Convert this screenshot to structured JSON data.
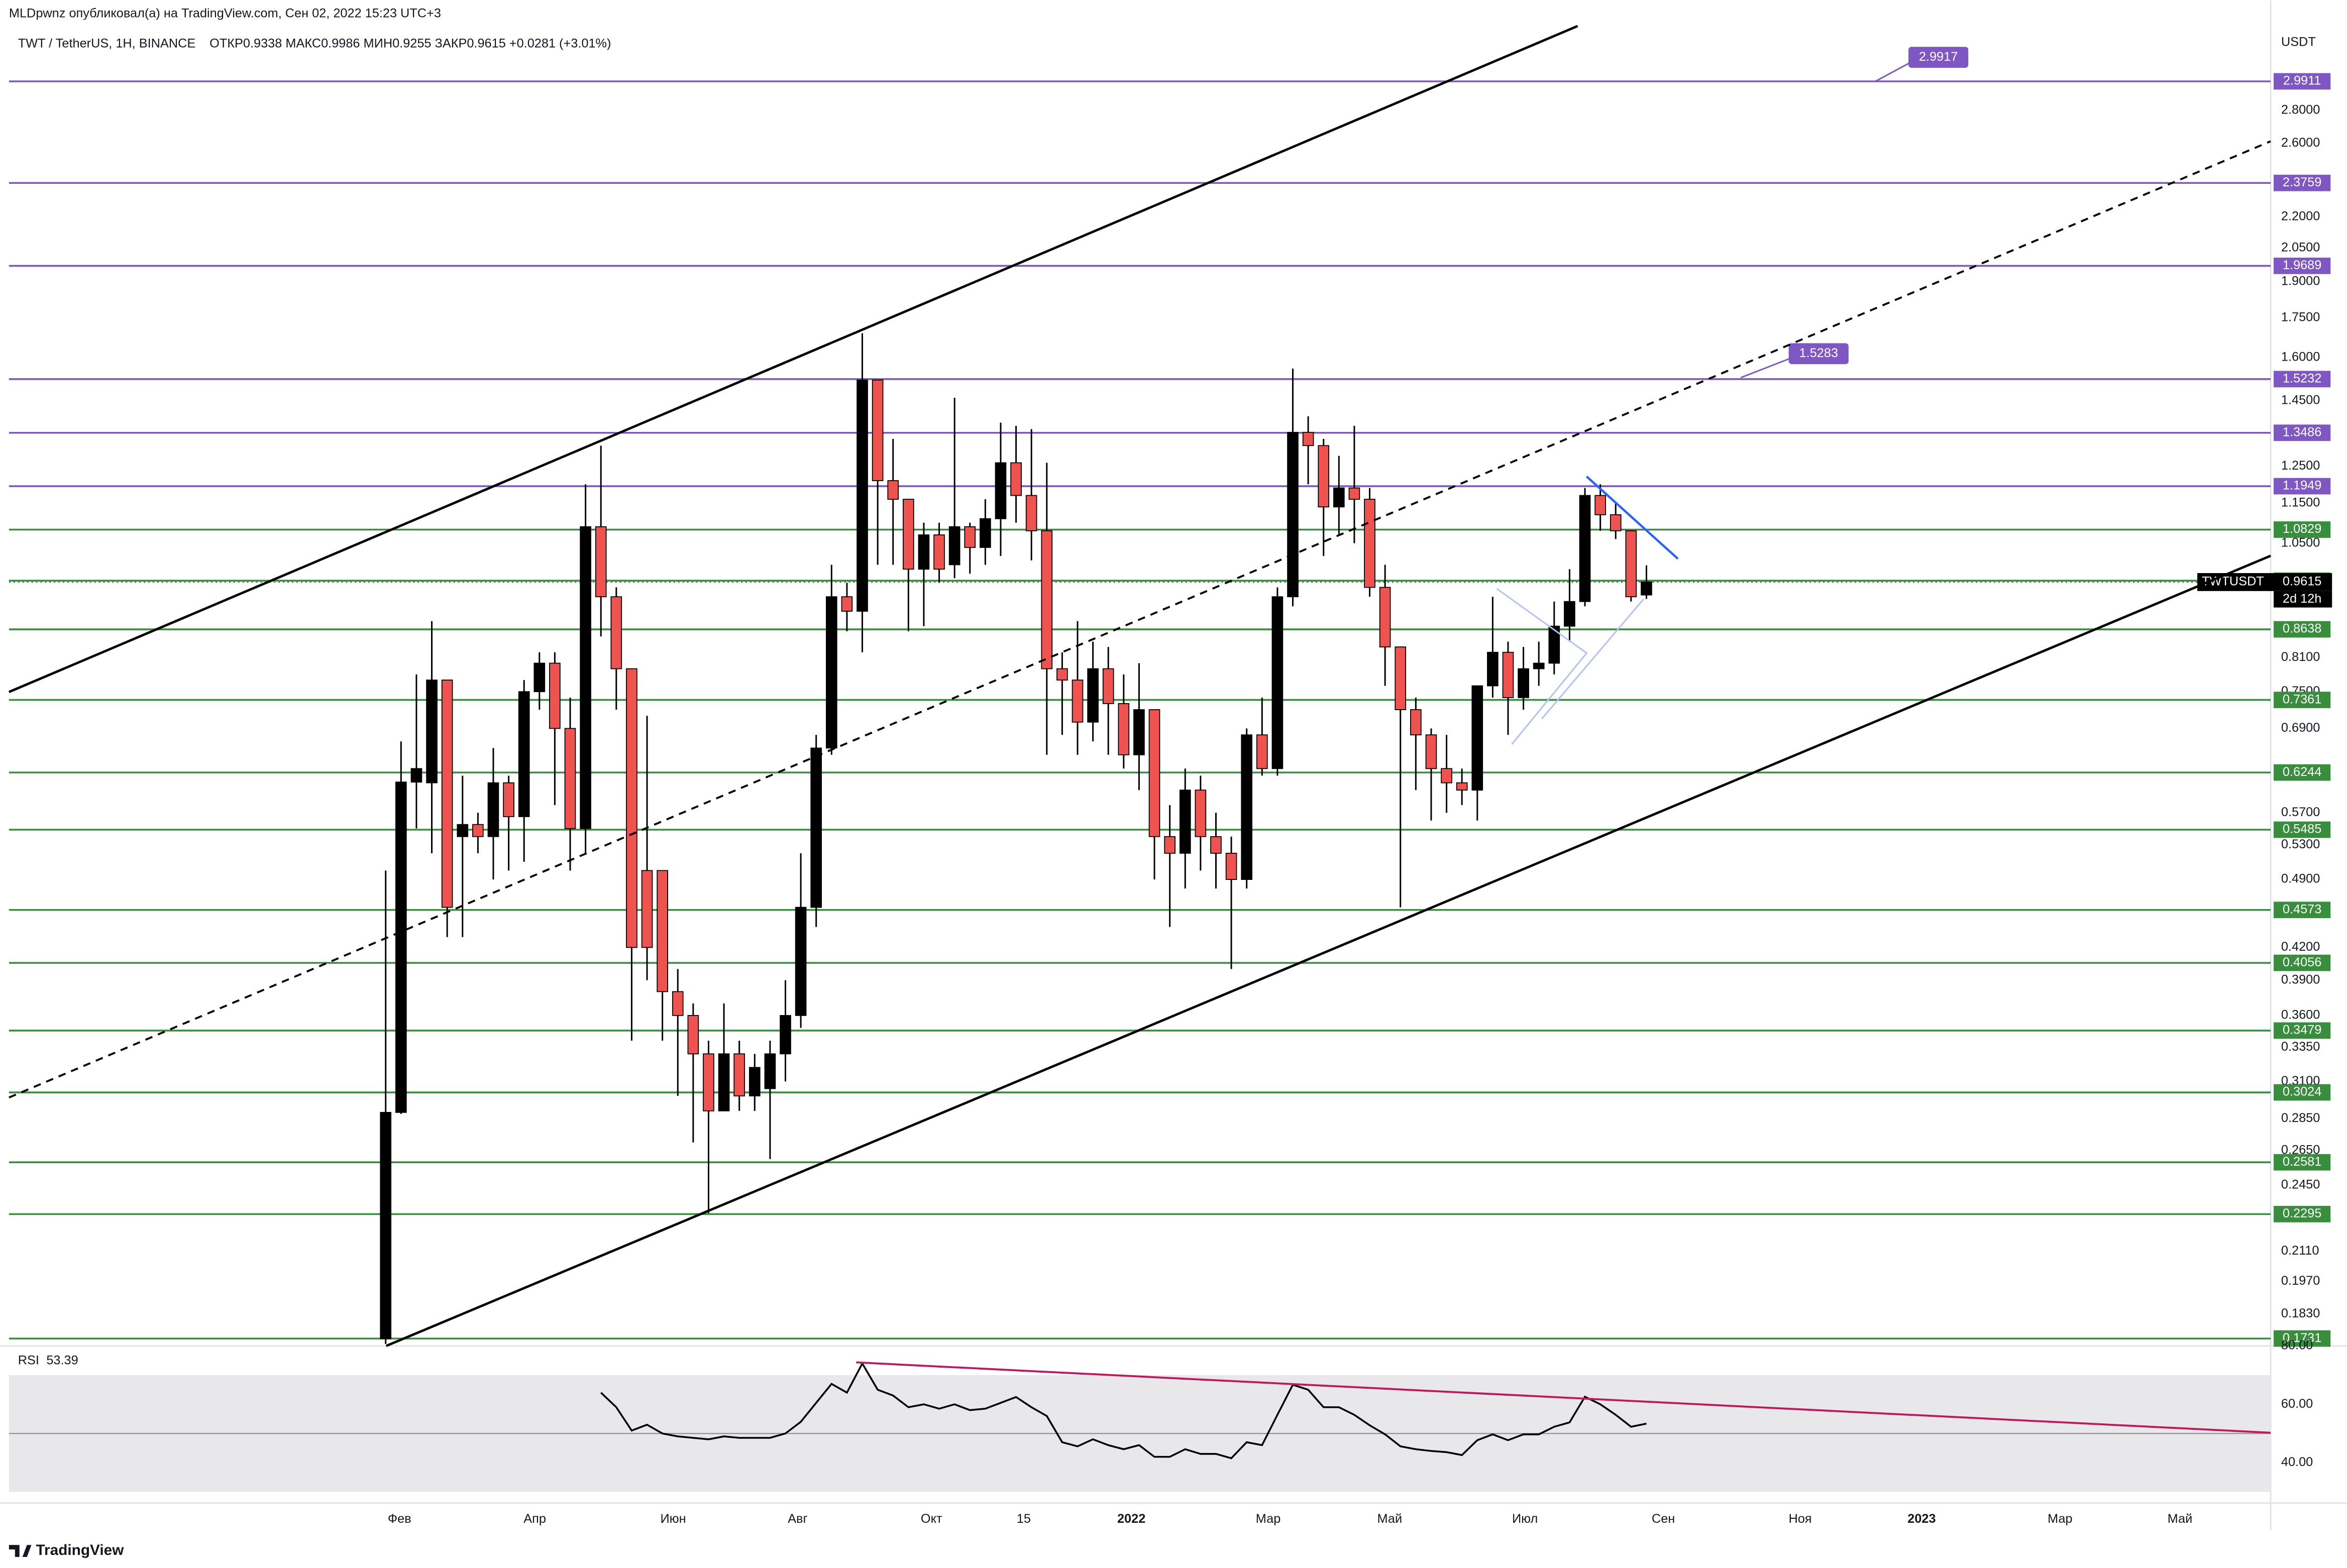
{
  "header": {
    "author": "MLDpwnz опубликовал(а) на TradingView.com, Сен 02, 2022 15:23 UTC+3",
    "symbol": "TWT / TetherUS, 1H, BINANCE",
    "ohlc": "ОТКР0.9338  МАКС0.9986  МИН0.9255  ЗАКР0.9615  +0.0281 (+3.01%)",
    "currency": "USDT"
  },
  "footer": {
    "brand": "TradingView"
  },
  "chart_data": [
    {
      "type": "candlestick",
      "log_scale": true,
      "up_color": "#000000",
      "down_color": "#ef5350",
      "ylim": [
        0.1708,
        3.592
      ],
      "xlim": [
        -24.5,
        122.6
      ],
      "yticks": [
        {
          "value": 2.8,
          "label": "2.8000"
        },
        {
          "value": 2.6,
          "label": "2.6000"
        },
        {
          "value": 2.2,
          "label": "2.2000"
        },
        {
          "value": 2.05,
          "label": "2.0500"
        },
        {
          "value": 1.9,
          "label": "1.9000"
        },
        {
          "value": 1.75,
          "label": "1.7500"
        },
        {
          "value": 1.6,
          "label": "1.6000"
        },
        {
          "value": 1.45,
          "label": "1.4500"
        },
        {
          "value": 1.25,
          "label": "1.2500"
        },
        {
          "value": 1.15,
          "label": "1.1500"
        },
        {
          "value": 1.05,
          "label": "1.0500"
        },
        {
          "value": 0.81,
          "label": "0.8100"
        },
        {
          "value": 0.75,
          "label": "0.7500"
        },
        {
          "value": 0.69,
          "label": "0.6900"
        },
        {
          "value": 0.57,
          "label": "0.5700"
        },
        {
          "value": 0.53,
          "label": "0.5300"
        },
        {
          "value": 0.49,
          "label": "0.4900"
        },
        {
          "value": 0.42,
          "label": "0.4200"
        },
        {
          "value": 0.39,
          "label": "0.3900"
        },
        {
          "value": 0.36,
          "label": "0.3600"
        },
        {
          "value": 0.335,
          "label": "0.3350"
        },
        {
          "value": 0.31,
          "label": "0.3100"
        },
        {
          "value": 0.285,
          "label": "0.2850"
        },
        {
          "value": 0.265,
          "label": "0.2650"
        },
        {
          "value": 0.245,
          "label": "0.2450"
        },
        {
          "value": 0.211,
          "label": "0.2110"
        },
        {
          "value": 0.197,
          "label": "0.1970"
        },
        {
          "value": 0.183,
          "label": "0.1830"
        }
      ],
      "xticks": [
        {
          "value": 0.9,
          "label": "Фев"
        },
        {
          "value": 9.7,
          "label": "Апр"
        },
        {
          "value": 18.7,
          "label": "Июн"
        },
        {
          "value": 26.8,
          "label": "Авг"
        },
        {
          "value": 35.5,
          "label": "Окт"
        },
        {
          "value": 41.5,
          "label": "15"
        },
        {
          "value": 48.5,
          "label": "2022"
        },
        {
          "value": 57.4,
          "label": "Мар"
        },
        {
          "value": 65.3,
          "label": "Май"
        },
        {
          "value": 74.1,
          "label": "Июл"
        },
        {
          "value": 83.1,
          "label": "Сен"
        },
        {
          "value": 92.0,
          "label": "Ноя"
        },
        {
          "value": 99.9,
          "label": "2023"
        },
        {
          "value": 108.9,
          "label": "Мар"
        },
        {
          "value": 116.7,
          "label": "Май"
        }
      ],
      "levels": [
        {
          "value": 2.9911,
          "color": "#7e57c2"
        },
        {
          "value": 2.3759,
          "color": "#7e57c2"
        },
        {
          "value": 1.9689,
          "color": "#7e57c2"
        },
        {
          "value": 1.5232,
          "color": "#7e57c2"
        },
        {
          "value": 1.3486,
          "color": "#7e57c2"
        },
        {
          "value": 1.1949,
          "color": "#7e57c2"
        },
        {
          "value": 1.0829,
          "color": "#388e3c"
        },
        {
          "value": 0.9645,
          "color": "#388e3c"
        },
        {
          "value": 0.8638,
          "color": "#388e3c"
        },
        {
          "value": 0.7361,
          "color": "#388e3c"
        },
        {
          "value": 0.6244,
          "color": "#388e3c"
        },
        {
          "value": 0.5485,
          "color": "#388e3c"
        },
        {
          "value": 0.4573,
          "color": "#388e3c"
        },
        {
          "value": 0.4056,
          "color": "#388e3c"
        },
        {
          "value": 0.3479,
          "color": "#388e3c"
        },
        {
          "value": 0.3024,
          "color": "#388e3c"
        },
        {
          "value": 0.2581,
          "color": "#388e3c"
        },
        {
          "value": 0.2295,
          "color": "#388e3c"
        },
        {
          "value": 0.1731,
          "color": "#388e3c"
        }
      ],
      "callouts": [
        2.9917,
        1.5283
      ],
      "last_price": 0.9615,
      "last_symbol": "TWTUSDT",
      "countdown": "2d 12h",
      "ohlc": [
        [
          0.173,
          0.5,
          0.171,
          0.289
        ],
        [
          0.289,
          0.67,
          0.288,
          0.611
        ],
        [
          0.611,
          0.78,
          0.55,
          0.63
        ],
        [
          0.61,
          0.88,
          0.52,
          0.77
        ],
        [
          0.77,
          0.77,
          0.43,
          0.46
        ],
        [
          0.54,
          0.62,
          0.43,
          0.555
        ],
        [
          0.555,
          0.57,
          0.52,
          0.54
        ],
        [
          0.54,
          0.66,
          0.49,
          0.61
        ],
        [
          0.61,
          0.62,
          0.5,
          0.565
        ],
        [
          0.565,
          0.77,
          0.51,
          0.75
        ],
        [
          0.75,
          0.82,
          0.72,
          0.8
        ],
        [
          0.8,
          0.82,
          0.58,
          0.69
        ],
        [
          0.69,
          0.74,
          0.5,
          0.55
        ],
        [
          0.55,
          1.2,
          0.52,
          1.09
        ],
        [
          1.09,
          1.31,
          0.85,
          0.93
        ],
        [
          0.93,
          0.95,
          0.72,
          0.79
        ],
        [
          0.79,
          0.79,
          0.34,
          0.42
        ],
        [
          0.5,
          0.71,
          0.39,
          0.42
        ],
        [
          0.5,
          0.5,
          0.34,
          0.38
        ],
        [
          0.38,
          0.4,
          0.3,
          0.36
        ],
        [
          0.36,
          0.37,
          0.27,
          0.33
        ],
        [
          0.33,
          0.34,
          0.23,
          0.29
        ],
        [
          0.29,
          0.37,
          0.29,
          0.33
        ],
        [
          0.33,
          0.34,
          0.29,
          0.3
        ],
        [
          0.3,
          0.33,
          0.29,
          0.32
        ],
        [
          0.305,
          0.34,
          0.26,
          0.33
        ],
        [
          0.33,
          0.39,
          0.31,
          0.36
        ],
        [
          0.36,
          0.52,
          0.35,
          0.46
        ],
        [
          0.46,
          0.68,
          0.44,
          0.66
        ],
        [
          0.66,
          1.0,
          0.65,
          0.93
        ],
        [
          0.93,
          0.96,
          0.86,
          0.9
        ],
        [
          0.9,
          1.69,
          0.82,
          1.52
        ],
        [
          1.52,
          1.52,
          1.0,
          1.21
        ],
        [
          1.21,
          1.33,
          1.0,
          1.16
        ],
        [
          1.16,
          1.16,
          0.86,
          0.99
        ],
        [
          0.99,
          1.1,
          0.87,
          1.07
        ],
        [
          1.07,
          1.1,
          0.96,
          0.99
        ],
        [
          1.0,
          1.46,
          0.97,
          1.09
        ],
        [
          1.09,
          1.1,
          0.98,
          1.04
        ],
        [
          1.04,
          1.16,
          1.0,
          1.11
        ],
        [
          1.11,
          1.38,
          1.02,
          1.26
        ],
        [
          1.26,
          1.37,
          1.1,
          1.17
        ],
        [
          1.17,
          1.36,
          1.01,
          1.08
        ],
        [
          1.08,
          1.26,
          0.65,
          0.79
        ],
        [
          0.79,
          0.82,
          0.68,
          0.77
        ],
        [
          0.77,
          0.88,
          0.65,
          0.7
        ],
        [
          0.7,
          0.84,
          0.67,
          0.79
        ],
        [
          0.79,
          0.83,
          0.65,
          0.73
        ],
        [
          0.73,
          0.78,
          0.63,
          0.65
        ],
        [
          0.65,
          0.8,
          0.6,
          0.72
        ],
        [
          0.72,
          0.72,
          0.49,
          0.54
        ],
        [
          0.54,
          0.58,
          0.44,
          0.52
        ],
        [
          0.52,
          0.63,
          0.48,
          0.6
        ],
        [
          0.6,
          0.62,
          0.5,
          0.54
        ],
        [
          0.54,
          0.57,
          0.48,
          0.52
        ],
        [
          0.52,
          0.54,
          0.4,
          0.49
        ],
        [
          0.49,
          0.69,
          0.48,
          0.68
        ],
        [
          0.68,
          0.74,
          0.62,
          0.63
        ],
        [
          0.63,
          0.95,
          0.62,
          0.93
        ],
        [
          0.93,
          1.56,
          0.91,
          1.35
        ],
        [
          1.35,
          1.4,
          1.2,
          1.31
        ],
        [
          1.31,
          1.33,
          1.02,
          1.14
        ],
        [
          1.14,
          1.28,
          1.07,
          1.19
        ],
        [
          1.19,
          1.37,
          1.05,
          1.16
        ],
        [
          1.16,
          1.19,
          0.93,
          0.95
        ],
        [
          0.95,
          1.0,
          0.76,
          0.83
        ],
        [
          0.83,
          0.83,
          0.46,
          0.72
        ],
        [
          0.72,
          0.74,
          0.6,
          0.68
        ],
        [
          0.68,
          0.69,
          0.56,
          0.63
        ],
        [
          0.63,
          0.68,
          0.57,
          0.61
        ],
        [
          0.61,
          0.63,
          0.58,
          0.6
        ],
        [
          0.6,
          0.76,
          0.56,
          0.76
        ],
        [
          0.76,
          0.93,
          0.74,
          0.82
        ],
        [
          0.82,
          0.84,
          0.68,
          0.74
        ],
        [
          0.74,
          0.83,
          0.72,
          0.79
        ],
        [
          0.79,
          0.84,
          0.76,
          0.8
        ],
        [
          0.8,
          0.92,
          0.78,
          0.87
        ],
        [
          0.87,
          0.99,
          0.84,
          0.92
        ],
        [
          0.92,
          1.19,
          0.91,
          1.17
        ],
        [
          1.17,
          1.2,
          1.08,
          1.12
        ],
        [
          1.12,
          1.15,
          1.06,
          1.08
        ],
        [
          1.08,
          1.08,
          0.92,
          0.93
        ],
        [
          0.9338,
          0.9986,
          0.9255,
          0.9615
        ]
      ]
    },
    {
      "type": "line",
      "title": "RSI",
      "value": 53.39,
      "color": "#000000",
      "ylim": [
        28.2,
        79.5
      ],
      "band": [
        30,
        70
      ],
      "midline": 50,
      "yticks": [
        {
          "value": 80,
          "label": "80.00"
        },
        {
          "value": 60,
          "label": "60.00"
        },
        {
          "value": 40,
          "label": "40.00"
        }
      ],
      "values": [
        null,
        null,
        null,
        null,
        null,
        null,
        null,
        null,
        null,
        null,
        null,
        null,
        null,
        null,
        64,
        59,
        51,
        53,
        50,
        49,
        48.5,
        48,
        49,
        48.5,
        48.5,
        48.5,
        50,
        54,
        60.5,
        67,
        64,
        74,
        65,
        63,
        59,
        60,
        58.5,
        60,
        58,
        58.5,
        60.5,
        62.5,
        59,
        56,
        47,
        45.6,
        48,
        46,
        44.6,
        46,
        42,
        42,
        44.6,
        43,
        43,
        41.5,
        47,
        46,
        56.4,
        66.7,
        65,
        59,
        59,
        56.4,
        52.8,
        49.7,
        45.6,
        44.6,
        44,
        43.6,
        42.6,
        47.7,
        49.7,
        47.7,
        49.7,
        49.7,
        52.3,
        53.8,
        62.6,
        60,
        56.4,
        52.3,
        53.39
      ]
    }
  ]
}
